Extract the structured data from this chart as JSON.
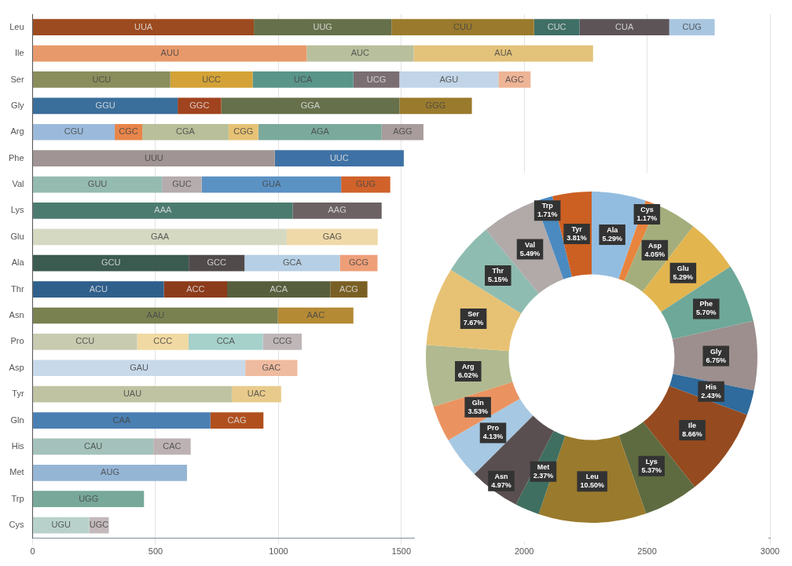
{
  "chart_data": [
    {
      "type": "bar",
      "orientation": "horizontal",
      "stacked": true,
      "grid": "x",
      "xlim": [
        0,
        3000
      ],
      "xticks": [
        0,
        500,
        1000,
        1500,
        2000,
        2500,
        3000
      ],
      "categories": [
        "Leu",
        "Ile",
        "Ser",
        "Gly",
        "Arg",
        "Phe",
        "Val",
        "Lys",
        "Glu",
        "Ala",
        "Thr",
        "Asn",
        "Pro",
        "Asp",
        "Tyr",
        "Gln",
        "His",
        "Met",
        "Trp",
        "Cys"
      ],
      "series": [
        {
          "values": [
            900,
            1115,
            560,
            590,
            334,
            985,
            526,
            1058,
            1034,
            635,
            534,
            998,
            425,
            865,
            810,
            723,
            491,
            628,
            453,
            230
          ],
          "colors": [
            "#9c4a1f",
            "#e8996b",
            "#8a8e5c",
            "#3a6e9b",
            "#9bbadb",
            "#a09494",
            "#95bbb1",
            "#4b7b6f",
            "#d6d9c2",
            "#3b5a50",
            "#2f5f8b",
            "#7a8150",
            "#c8cbb0",
            "#c8d9ea",
            "#c0c3a2",
            "#4a7fb2",
            "#a4c2bb",
            "#95b5d5",
            "#77a89a",
            "#b8d2cb"
          ],
          "value_labels": [
            "UUA",
            "AUU",
            "UCU",
            "GGU",
            "CGU",
            "UUU",
            "GUU",
            "AAA",
            "GAA",
            "GCU",
            "ACU",
            "AAU",
            "CCU",
            "GAU",
            "UAU",
            "CAA",
            "CAU",
            "AUG",
            "UGG",
            "UGU"
          ]
        },
        {
          "values": [
            560,
            435,
            335,
            177,
            112,
            525,
            162,
            362,
            370,
            227,
            257,
            307,
            209,
            212,
            201,
            216,
            152,
            null,
            null,
            80
          ],
          "colors": [
            "#66704a",
            "#b7bf9c",
            "#d4a237",
            "#a0431e",
            "#e8854a",
            "#3e72a6",
            "#b5acad",
            "#6c6263",
            "#efd9a8",
            "#514a4b",
            "#8c3b1b",
            "#b48a34",
            "#f0d9a2",
            "#efbba0",
            "#e8cb8c",
            "#b0501e",
            "#bdb2b3",
            null,
            null,
            "#c3b9bb"
          ],
          "value_labels": [
            "UUG",
            "AUC",
            "UCC",
            "GGC",
            "CGC",
            "UUC",
            "GUC",
            "AAG",
            "GAG",
            "GCC",
            "ACC",
            "AAC",
            "CCC",
            "GAC",
            "UAC",
            "CAG",
            "CAC",
            null,
            null,
            "UGC"
          ]
        },
        {
          "values": [
            580,
            730,
            410,
            725,
            351,
            null,
            567,
            null,
            null,
            388,
            420,
            null,
            303,
            null,
            null,
            null,
            null,
            null,
            null,
            null
          ],
          "colors": [
            "#9a7a2c",
            "#e3c27a",
            "#5a958a",
            "#66704a",
            "#b8bf9a",
            null,
            "#5b92c4",
            null,
            null,
            "#b6cfe4",
            "#575e3d",
            null,
            "#a6d1cb",
            null,
            null,
            null,
            null,
            null,
            null,
            null
          ],
          "value_labels": [
            "CUU",
            "AUA",
            "UCA",
            "GGA",
            "CGA",
            null,
            "GUA",
            null,
            null,
            "GCA",
            "ACA",
            null,
            "CCA",
            null,
            null,
            null,
            null,
            null,
            null,
            null
          ]
        },
        {
          "values": [
            185,
            null,
            187,
            295,
            121,
            null,
            200,
            null,
            null,
            153,
            151,
            null,
            158,
            null,
            null,
            null,
            null,
            null,
            null,
            null
          ],
          "colors": [
            "#3f6f66",
            null,
            "#7a6e72",
            "#9a7a2c",
            "#e6c275",
            null,
            "#d0622a",
            null,
            null,
            "#ee9f78",
            "#7a5f24",
            null,
            "#bfb6b8",
            null,
            null,
            null,
            null,
            null,
            null,
            null
          ],
          "value_labels": [
            "CUC",
            null,
            "UCG",
            "GGG",
            "CGG",
            null,
            "GUG",
            null,
            null,
            "GCG",
            "ACG",
            null,
            "CCG",
            null,
            null,
            null,
            null,
            null,
            null,
            null
          ]
        },
        {
          "values": [
            365,
            null,
            403,
            null,
            502,
            null,
            null,
            null,
            null,
            null,
            null,
            null,
            null,
            null,
            null,
            null,
            null,
            null,
            null,
            null
          ],
          "colors": [
            "#5d5458",
            null,
            "#c2d5e8",
            null,
            "#7ba99c",
            null,
            null,
            null,
            null,
            null,
            null,
            null,
            null,
            null,
            null,
            null,
            null,
            null,
            null,
            null
          ],
          "value_labels": [
            "CUA",
            null,
            "AGU",
            null,
            "AGA",
            null,
            null,
            null,
            null,
            null,
            null,
            null,
            null,
            null,
            null,
            null,
            null,
            null,
            null,
            null
          ]
        },
        {
          "values": [
            185,
            null,
            131,
            null,
            170,
            null,
            null,
            null,
            null,
            null,
            null,
            null,
            null,
            null,
            null,
            null,
            null,
            null,
            null,
            null
          ],
          "colors": [
            "#a9c6e0",
            null,
            "#eeb496",
            null,
            "#a89c9c",
            null,
            null,
            null,
            null,
            null,
            null,
            null,
            null,
            null,
            null,
            null,
            null,
            null,
            null,
            null
          ],
          "value_labels": [
            "CUG",
            null,
            "AGC",
            null,
            "AGG",
            null,
            null,
            null,
            null,
            null,
            null,
            null,
            null,
            null,
            null,
            null,
            null,
            null,
            null,
            null
          ]
        }
      ]
    },
    {
      "type": "donut",
      "categories": [
        "Ala",
        "Cys",
        "Asp",
        "Glu",
        "Phe",
        "Gly",
        "His",
        "Ile",
        "Lys",
        "Leu",
        "Met",
        "Asn",
        "Pro",
        "Gln",
        "Arg",
        "Ser",
        "Thr",
        "Val",
        "Trp",
        "Tyr"
      ],
      "values": [
        5.29,
        1.17,
        4.05,
        5.29,
        5.7,
        6.75,
        2.43,
        8.66,
        5.37,
        10.5,
        2.37,
        4.97,
        4.13,
        3.53,
        6.02,
        7.67,
        5.15,
        5.49,
        1.71,
        3.81
      ],
      "value_labels": [
        "5.29%",
        "1.17%",
        "4.05%",
        "5.29%",
        "5.70%",
        "6.75%",
        "2.43%",
        "8.66%",
        "5.37%",
        "10.50%",
        "2.37%",
        "4.97%",
        "4.13%",
        "3.53%",
        "6.02%",
        "7.67%",
        "5.15%",
        "5.49%",
        "1.71%",
        "3.81%"
      ],
      "colors": [
        "#93bde0",
        "#e8843d",
        "#a4ae7c",
        "#e2b54f",
        "#6ea899",
        "#9c8f8e",
        "#2f6b9c",
        "#954a1f",
        "#5e6b40",
        "#9a7a2c",
        "#3f6f60",
        "#5a4f50",
        "#a7c8e2",
        "#ea9361",
        "#b0b98f",
        "#e7c274",
        "#8fbcb0",
        "#b2a9a9",
        "#4a8ac0",
        "#cc5f22"
      ]
    }
  ]
}
